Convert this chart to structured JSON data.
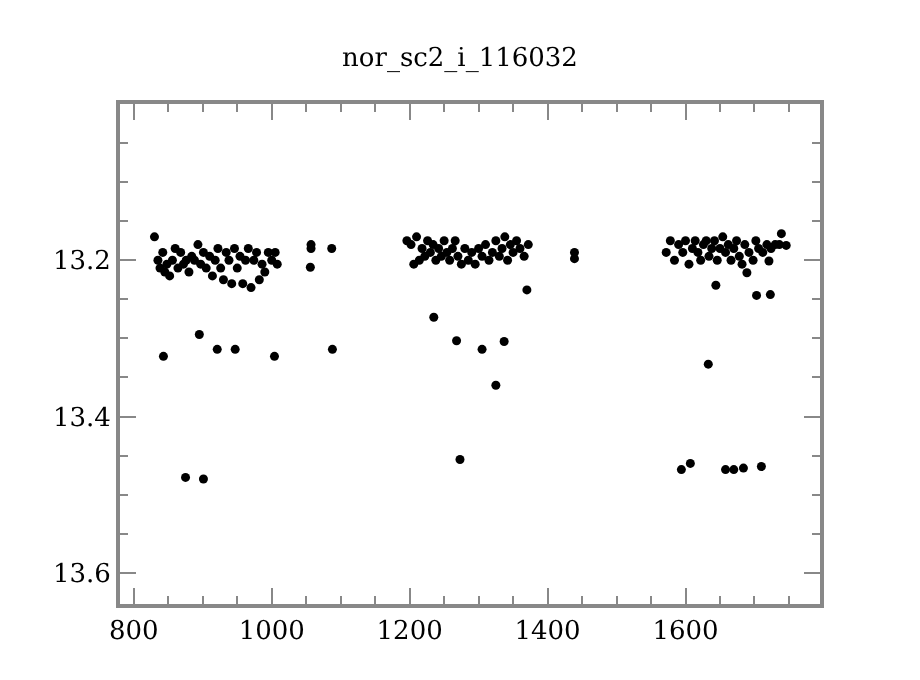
{
  "chart_data": {
    "type": "scatter",
    "title": "nor_sc2_i_116032",
    "x": [
      830,
      835,
      838,
      842,
      845,
      848,
      852,
      856,
      860,
      864,
      868,
      872,
      876,
      880,
      884,
      888,
      893,
      897,
      901,
      905,
      910,
      914,
      918,
      922,
      926,
      930,
      934,
      938,
      942,
      946,
      950,
      954,
      958,
      962,
      966,
      970,
      974,
      978,
      982,
      986,
      990,
      995,
      1000,
      1005,
      1008,
      843,
      895,
      921,
      947,
      1004,
      1088,
      875,
      901,
      1056,
      1057,
      1057,
      1087,
      1196,
      1202,
      1206,
      1210,
      1214,
      1218,
      1222,
      1226,
      1230,
      1234,
      1238,
      1242,
      1246,
      1250,
      1254,
      1258,
      1262,
      1266,
      1270,
      1275,
      1280,
      1285,
      1290,
      1295,
      1300,
      1305,
      1310,
      1315,
      1320,
      1325,
      1330,
      1334,
      1338,
      1342,
      1346,
      1350,
      1355,
      1360,
      1366,
      1372,
      1370,
      1235,
      1268,
      1305,
      1337,
      1325,
      1273,
      1439,
      1439,
      1572,
      1578,
      1584,
      1590,
      1596,
      1600,
      1605,
      1610,
      1614,
      1618,
      1622,
      1626,
      1630,
      1634,
      1638,
      1642,
      1646,
      1650,
      1654,
      1658,
      1662,
      1666,
      1670,
      1674,
      1678,
      1682,
      1686,
      1692,
      1698,
      1702,
      1706,
      1712,
      1718,
      1724,
      1730,
      1736,
      1644,
      1633,
      1594,
      1607,
      1658,
      1670,
      1684,
      1710,
      1703,
      1723,
      1689,
      1721,
      1739,
      1746
    ],
    "values": [
      13.17,
      13.2,
      13.21,
      13.19,
      13.215,
      13.205,
      13.22,
      13.2,
      13.185,
      13.21,
      13.19,
      13.205,
      13.2,
      13.215,
      13.195,
      13.2,
      13.18,
      13.205,
      13.19,
      13.21,
      13.195,
      13.22,
      13.2,
      13.185,
      13.21,
      13.225,
      13.19,
      13.2,
      13.23,
      13.185,
      13.21,
      13.195,
      13.23,
      13.2,
      13.185,
      13.235,
      13.2,
      13.19,
      13.225,
      13.205,
      13.215,
      13.19,
      13.2,
      13.19,
      13.205,
      13.323,
      13.295,
      13.314,
      13.314,
      13.323,
      13.314,
      13.478,
      13.48,
      13.209,
      13.18,
      13.185,
      13.185,
      13.175,
      13.18,
      13.205,
      13.17,
      13.2,
      13.185,
      13.195,
      13.175,
      13.19,
      13.18,
      13.2,
      13.185,
      13.195,
      13.175,
      13.19,
      13.2,
      13.185,
      13.175,
      13.195,
      13.205,
      13.185,
      13.2,
      13.19,
      13.205,
      13.185,
      13.195,
      13.18,
      13.2,
      13.19,
      13.175,
      13.195,
      13.185,
      13.17,
      13.2,
      13.18,
      13.19,
      13.175,
      13.185,
      13.195,
      13.18,
      13.238,
      13.273,
      13.303,
      13.314,
      13.304,
      13.36,
      13.455,
      13.19,
      13.198,
      13.19,
      13.175,
      13.2,
      13.18,
      13.19,
      13.175,
      13.205,
      13.185,
      13.175,
      13.19,
      13.2,
      13.18,
      13.175,
      13.195,
      13.185,
      13.175,
      13.2,
      13.185,
      13.17,
      13.19,
      13.18,
      13.2,
      13.185,
      13.175,
      13.195,
      13.205,
      13.18,
      13.19,
      13.2,
      13.175,
      13.185,
      13.19,
      13.18,
      13.185,
      13.18,
      13.18,
      13.232,
      13.333,
      13.468,
      13.46,
      13.468,
      13.468,
      13.466,
      13.464,
      13.245,
      13.244,
      13.216,
      13.201,
      13.166,
      13.181
    ],
    "color": "#000000",
    "marker": "circle",
    "grid": false,
    "xlim": [
      780,
      1795
    ],
    "ylim": [
      13.64,
      13.0
    ],
    "xticks": [
      800,
      {
        "value": 850,
        "label": null
      },
      {
        "value": 900,
        "label": null
      },
      {
        "value": 950,
        "label": null
      },
      1000,
      {
        "value": 1050,
        "label": null
      },
      {
        "value": 1100,
        "label": null
      },
      {
        "value": 1150,
        "label": null
      },
      1200,
      {
        "value": 1250,
        "label": null
      },
      {
        "value": 1300,
        "label": null
      },
      {
        "value": 1350,
        "label": null
      },
      1400,
      {
        "value": 1450,
        "label": null
      },
      {
        "value": 1500,
        "label": null
      },
      {
        "value": 1550,
        "label": null
      },
      1600,
      {
        "value": 1650,
        "label": null
      },
      {
        "value": 1700,
        "label": null
      },
      {
        "value": 1750,
        "label": null
      }
    ],
    "yticks": [
      {
        "value": 13.05,
        "label": null
      },
      {
        "value": 13.1,
        "label": null
      },
      {
        "value": 13.15,
        "label": null
      },
      13.2,
      {
        "value": 13.25,
        "label": null
      },
      {
        "value": 13.3,
        "label": null
      },
      {
        "value": 13.35,
        "label": null
      },
      13.4,
      {
        "value": 13.45,
        "label": null
      },
      {
        "value": 13.5,
        "label": null
      },
      {
        "value": 13.55,
        "label": null
      },
      13.6
    ]
  }
}
